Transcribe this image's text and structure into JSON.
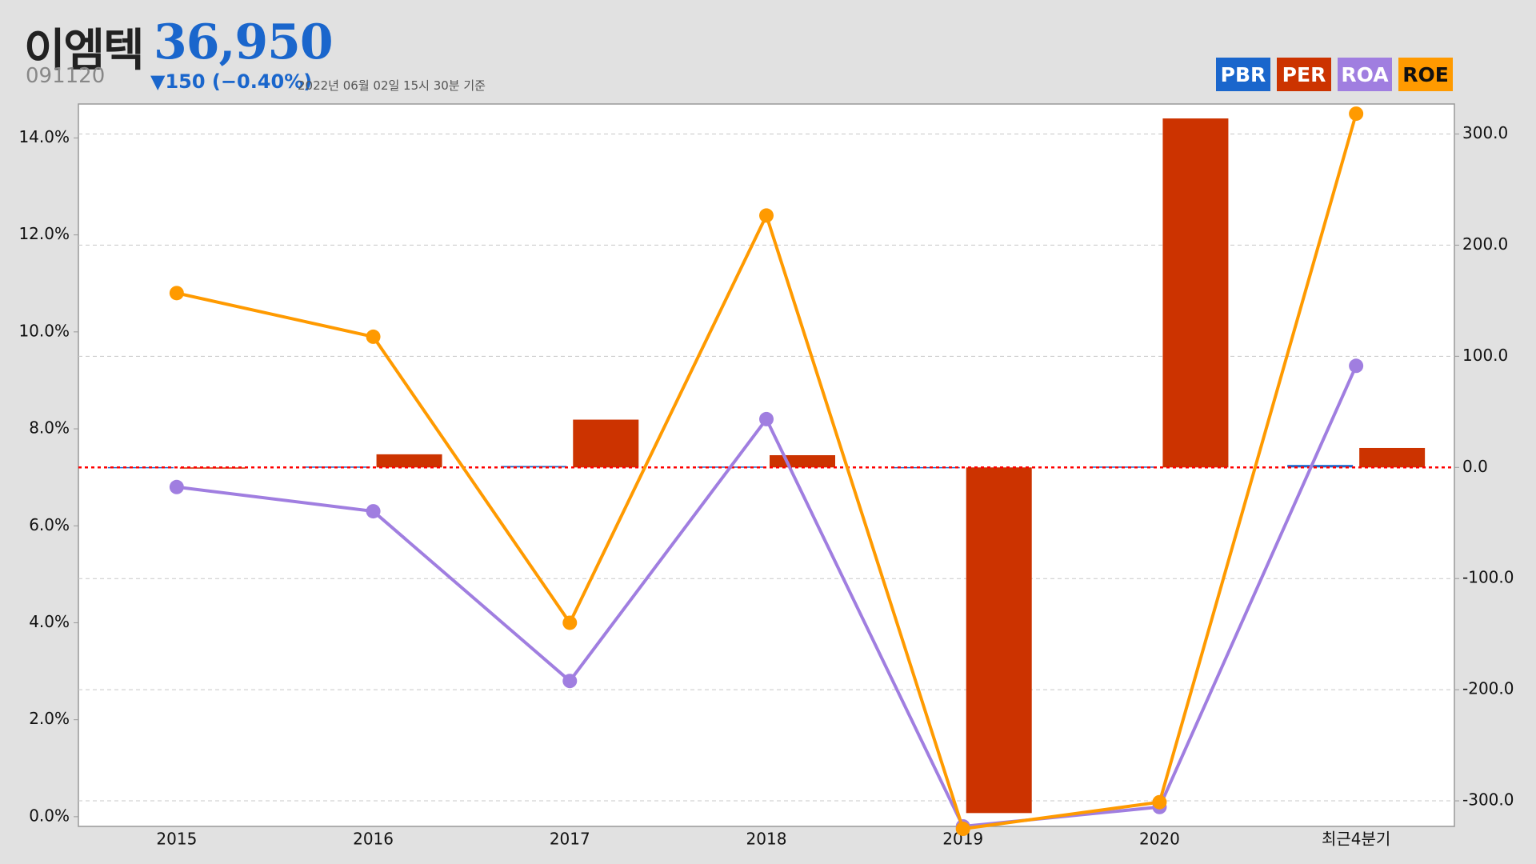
{
  "stock": {
    "name": "이엠텍",
    "price": "36,950",
    "code": "091120",
    "change": "▼150 (−0.40%)",
    "asof": "2022년 06월 02일 15시 30분 기준"
  },
  "legend": [
    {
      "label": "PBR",
      "color": "#1a66cc"
    },
    {
      "label": "PER",
      "color": "#cc3300"
    },
    {
      "label": "ROA",
      "color": "#a07ee0"
    },
    {
      "label": "ROE",
      "color": "#ff9a00"
    }
  ],
  "chart_data": {
    "type": "bar",
    "categories": [
      "2015",
      "2016",
      "2017",
      "2018",
      "2019",
      "2020",
      "최근4분기"
    ],
    "left_axis": {
      "ticks": [
        "0.0%",
        "2.0%",
        "4.0%",
        "6.0%",
        "8.0%",
        "10.0%",
        "12.0%",
        "14.0%"
      ],
      "range": [
        -0.2,
        14.7
      ]
    },
    "right_axis": {
      "ticks": [
        "-300.0",
        "-200.0",
        "-100.0",
        "0.0",
        "100.0",
        "200.0",
        "300.0"
      ],
      "range": [
        -323,
        327
      ]
    },
    "zero_line": {
      "axis": "right",
      "value": 0,
      "color": "#ff0000",
      "style": "dotted"
    },
    "grid": true,
    "legend_position": "top-right",
    "series": [
      {
        "name": "PBR",
        "type": "bar",
        "axis": "right",
        "color": "#1a66cc",
        "values": [
          0.3,
          0.8,
          1.3,
          0.8,
          0.3,
          0.8,
          2.2
        ]
      },
      {
        "name": "PER",
        "type": "bar",
        "axis": "right",
        "color": "#cc3300",
        "values": [
          0,
          11.8,
          43.0,
          11.0,
          -311.0,
          314.0,
          17.5
        ]
      },
      {
        "name": "ROA",
        "type": "line",
        "axis": "left",
        "color": "#a07ee0",
        "values": [
          6.8,
          6.3,
          2.8,
          8.2,
          -0.2,
          0.2,
          9.3
        ]
      },
      {
        "name": "ROE",
        "type": "line",
        "axis": "left",
        "color": "#ff9a00",
        "values": [
          10.8,
          9.9,
          4.0,
          12.4,
          -0.25,
          0.3,
          14.5
        ]
      }
    ]
  }
}
